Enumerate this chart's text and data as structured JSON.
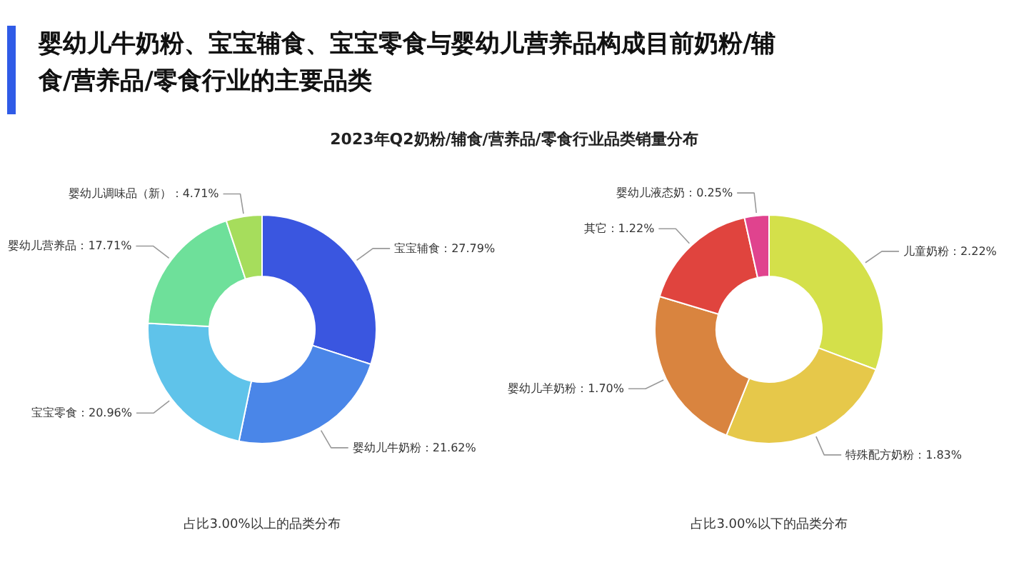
{
  "chart_data": [
    {
      "type": "donut",
      "title": "婴幼儿牛奶粉、宝宝辅食、宝宝零食与婴幼儿营养品构成目前奶粉/辅食/营养品/零食行业的主要品类",
      "subtitle": "2023年Q2奶粉/辅食/营养品/零食行业品类销量分布",
      "categories": [
        "宝宝辅食",
        "婴幼儿牛奶粉",
        "宝宝零食",
        "婴幼儿营养品",
        "婴幼儿调味品（新）"
      ],
      "values": [
        27.79,
        21.62,
        20.96,
        17.71,
        4.71
      ],
      "colors": [
        "#3a56e0",
        "#4a86e8",
        "#5fc3ea",
        "#6ee09a",
        "#a6dd5c"
      ],
      "value_labels": [
        "27.79%",
        "21.62%",
        "20.96%",
        "17.71%",
        "4.71%"
      ],
      "annotations": [
        "占比3.00%以上的品类分布"
      ]
    },
    {
      "type": "donut",
      "categories": [
        "儿童奶粉",
        "特殊配方奶粉",
        "婴幼儿羊奶粉",
        "其它",
        "婴幼儿液态奶"
      ],
      "values": [
        2.22,
        1.83,
        1.7,
        1.22,
        0.25
      ],
      "colors": [
        "#d4e04a",
        "#e6c84a",
        "#d9843f",
        "#e0443e",
        "#e0438e"
      ],
      "value_labels": [
        "2.22%",
        "1.83%",
        "1.70%",
        "1.22%",
        "0.25%"
      ],
      "annotations": [
        "占比3.00%以下的品类分布"
      ]
    }
  ]
}
